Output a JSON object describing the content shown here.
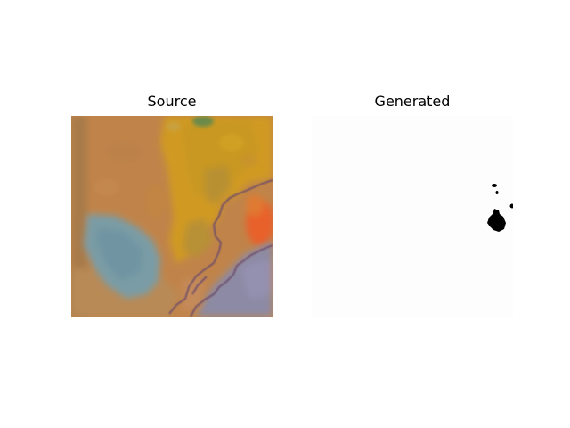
{
  "panels": [
    {
      "title": "Source",
      "image": "satellite-style imagery with orange, yellow, blue and purple regions"
    },
    {
      "title": "Generated",
      "image": "mostly white mask with small black blobs on the right side"
    }
  ],
  "colors": {
    "background": "#ffffff",
    "source_base": "#c08040",
    "source_yellow": "#d4a020",
    "source_blue": "#7a9aa0",
    "source_purple": "#8a8aa8",
    "source_red": "#e06030",
    "mask_white": "#fdfdfd",
    "mask_black": "#000000"
  }
}
